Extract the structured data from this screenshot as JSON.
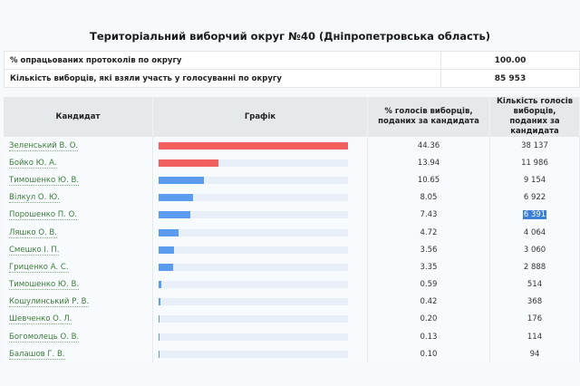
{
  "title": "Територіальний виборчий округ №40 (Дніпропетровська область)",
  "summary": [
    {
      "label": "% опрацьованих протоколів по округу",
      "value": "100.00"
    },
    {
      "label": "Кількість виборців, які взяли участь у голосуванні по округу",
      "value": "85 953"
    }
  ],
  "table": {
    "headers": [
      "Кандидат",
      "Графік",
      "% голосів виборців, поданих за кандидата",
      "Кількість голосів виборців, поданих за кандидата"
    ],
    "rows": [
      {
        "name": "Зеленський В. О.",
        "pct": "44.36",
        "votes": "38 137",
        "color": "#f25f5f",
        "selected": false
      },
      {
        "name": "Бойко Ю. А.",
        "pct": "13.94",
        "votes": "11 986",
        "color": "#f25f5f",
        "selected": false
      },
      {
        "name": "Тимошенко Ю. В.",
        "pct": "10.65",
        "votes": "9 154",
        "color": "#5b9cf0",
        "selected": false
      },
      {
        "name": "Вілкул О. Ю.",
        "pct": "8.05",
        "votes": "6 922",
        "color": "#5b9cf0",
        "selected": false
      },
      {
        "name": "Порошенко П. О.",
        "pct": "7.43",
        "votes": "6 391",
        "color": "#5b9cf0",
        "selected": true
      },
      {
        "name": "Ляшко О. В.",
        "pct": "4.72",
        "votes": "4 064",
        "color": "#5b9cf0",
        "selected": false
      },
      {
        "name": "Смешко І. П.",
        "pct": "3.56",
        "votes": "3 060",
        "color": "#5b9cf0",
        "selected": false
      },
      {
        "name": "Гриценко А. С.",
        "pct": "3.35",
        "votes": "2 888",
        "color": "#5b9cf0",
        "selected": false
      },
      {
        "name": "Тимошенко Ю. В.",
        "pct": "0.59",
        "votes": "514",
        "color": "#5b9cf0",
        "selected": false
      },
      {
        "name": "Кошулинський Р. В.",
        "pct": "0.42",
        "votes": "368",
        "color": "#5b9cf0",
        "selected": false
      },
      {
        "name": "Шевченко О. Л.",
        "pct": "0.20",
        "votes": "176",
        "color": "#5b9cf0",
        "selected": false
      },
      {
        "name": "Богомолець О. В.",
        "pct": "0.13",
        "votes": "114",
        "color": "#5b9cf0",
        "selected": false
      },
      {
        "name": "Балашов Г. В.",
        "pct": "0.10",
        "votes": "94",
        "color": "#5b9cf0",
        "selected": false
      }
    ]
  },
  "colors": {
    "top2": "#f25f5f",
    "others": "#5b9cf0",
    "track": "#e9eff8",
    "link": "#3d7a3a",
    "selection": "#3b7fd6"
  },
  "bar_scale_max_pct": 44.36
}
